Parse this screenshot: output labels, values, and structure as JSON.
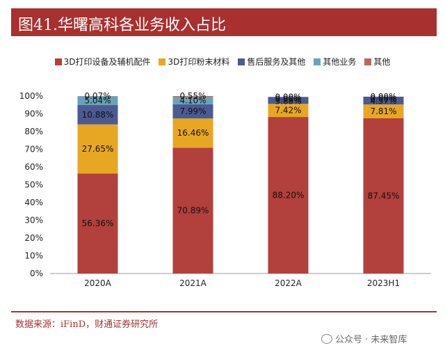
{
  "header": {
    "title": "图41.华曙高科各业务收入占比"
  },
  "footer": {
    "source": "数据来源：iFinD，财通证券研究所",
    "watermark": "公众号 · 未来智库"
  },
  "colors": [
    "#b2403c",
    "#e7a723",
    "#4b5a92",
    "#6aa3b8",
    "#b26a63"
  ],
  "chart_data": {
    "type": "bar",
    "stacked": true,
    "categories": [
      "2020A",
      "2021A",
      "2022A",
      "2023H1"
    ],
    "ylim": [
      0,
      100
    ],
    "yticks": [
      "0%",
      "10%",
      "20%",
      "30%",
      "40%",
      "50%",
      "60%",
      "70%",
      "80%",
      "90%",
      "100%"
    ],
    "legend_position": "top",
    "series": [
      {
        "name": "3D打印设备及辅机配件",
        "values": [
          56.36,
          70.89,
          88.2,
          87.45
        ],
        "labels": [
          "56.36%",
          "70.89%",
          "88.20%",
          "87.45%"
        ]
      },
      {
        "name": "3D打印粉末材料",
        "values": [
          27.65,
          16.46,
          7.42,
          7.81
        ],
        "labels": [
          "27.65%",
          "16.46%",
          "7.42%",
          "7.81%"
        ]
      },
      {
        "name": "售后服务及其他",
        "values": [
          10.88,
          7.99,
          3.88,
          4.37
        ],
        "labels": [
          "10.88%",
          "7.99%",
          "3.88%",
          "4.37%"
        ]
      },
      {
        "name": "其他业务",
        "values": [
          5.04,
          4.1,
          0.0,
          0.0
        ],
        "labels": [
          "5.04%",
          "4.10%",
          "0.00%",
          "0.00%"
        ]
      },
      {
        "name": "其他",
        "values": [
          0.07,
          0.55,
          0.0,
          0.0
        ],
        "labels": [
          "0.07%",
          "0.55%",
          "0.00%",
          "0.00%"
        ]
      }
    ]
  }
}
